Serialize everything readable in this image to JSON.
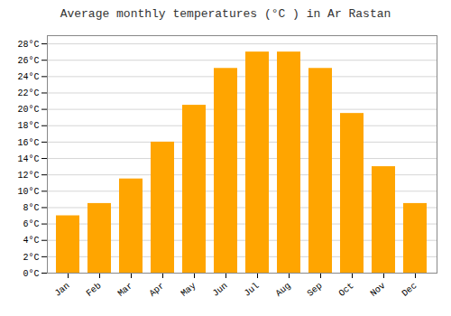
{
  "chart_data": {
    "type": "bar",
    "title": "Average monthly temperatures (°C ) in Ar Rastan",
    "categories": [
      "Jan",
      "Feb",
      "Mar",
      "Apr",
      "May",
      "Jun",
      "Jul",
      "Aug",
      "Sep",
      "Oct",
      "Nov",
      "Dec"
    ],
    "values": [
      7,
      8.5,
      11.5,
      16,
      20.5,
      25,
      27,
      27,
      25,
      19.5,
      13,
      8.5
    ],
    "color": "#FFA500",
    "ylim": [
      0,
      29
    ],
    "yticks": [
      {
        "value": 0,
        "label": "0°C"
      },
      {
        "value": 2,
        "label": "2°C"
      },
      {
        "value": 4,
        "label": "4°C"
      },
      {
        "value": 6,
        "label": "6°C"
      },
      {
        "value": 8,
        "label": "8°C"
      },
      {
        "value": 10,
        "label": "10°C"
      },
      {
        "value": 12,
        "label": "12°C"
      },
      {
        "value": 14,
        "label": "14°C"
      },
      {
        "value": 16,
        "label": "16°C"
      },
      {
        "value": 18,
        "label": "18°C"
      },
      {
        "value": 20,
        "label": "20°C"
      },
      {
        "value": 22,
        "label": "22°C"
      },
      {
        "value": 24,
        "label": "24°C"
      },
      {
        "value": 26,
        "label": "26°C"
      },
      {
        "value": 28,
        "label": "28°C"
      }
    ],
    "grid": true
  }
}
